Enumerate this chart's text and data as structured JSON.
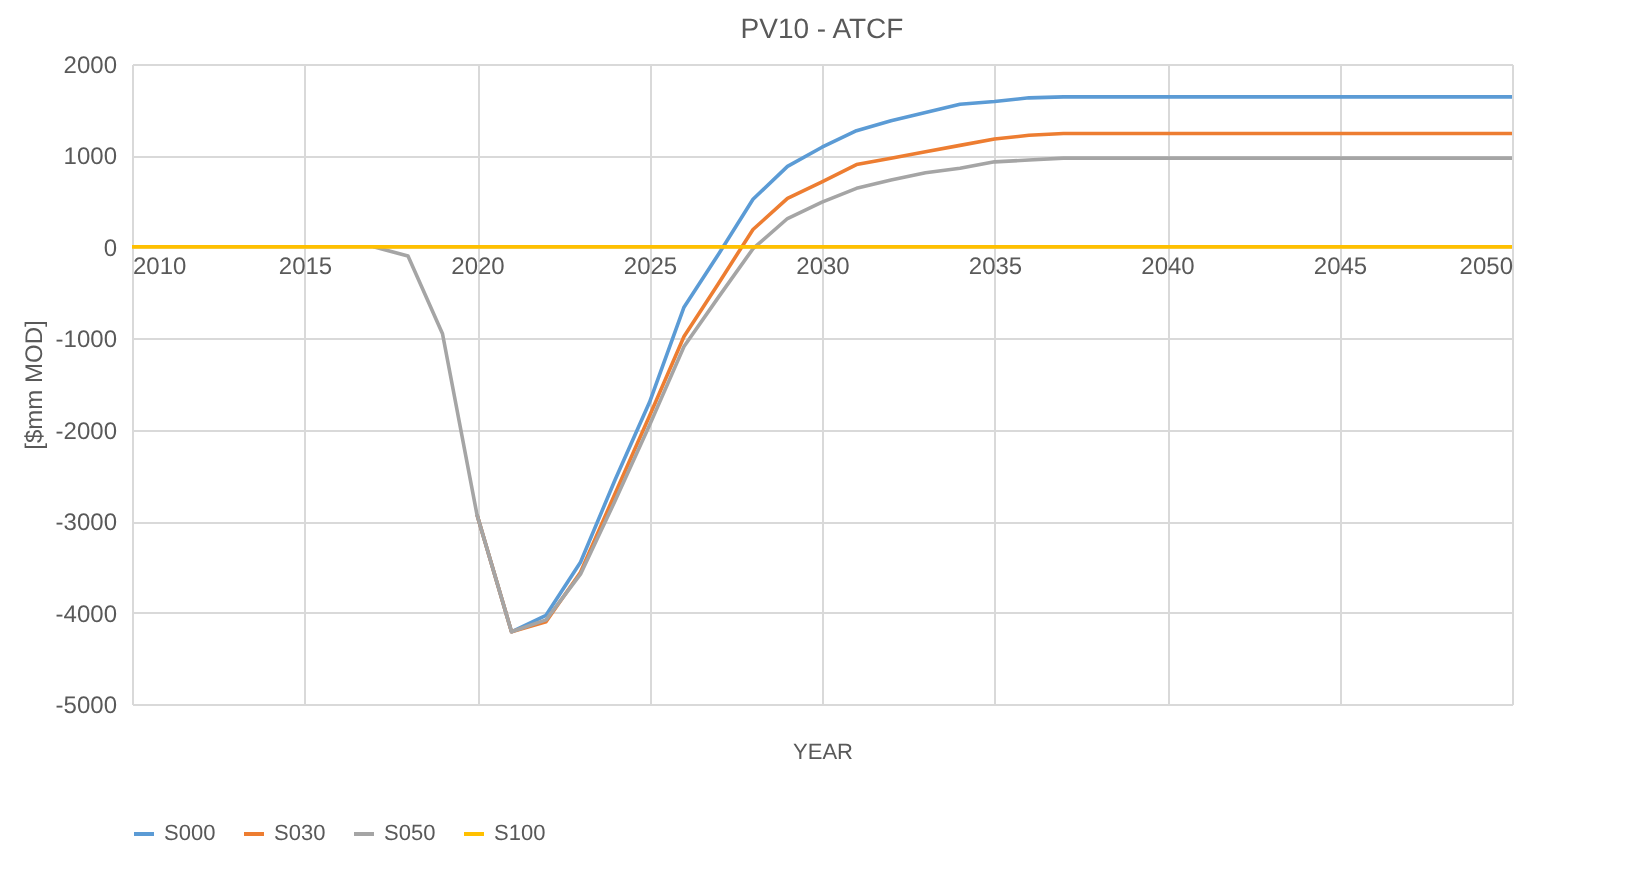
{
  "chart_data": {
    "type": "line",
    "title": "PV10 - ATCF",
    "xlabel": "YEAR",
    "ylabel": "[$mm MOD]",
    "x": [
      2010,
      2011,
      2012,
      2013,
      2014,
      2015,
      2016,
      2017,
      2018,
      2019,
      2020,
      2021,
      2022,
      2023,
      2024,
      2025,
      2026,
      2027,
      2028,
      2029,
      2030,
      2031,
      2032,
      2033,
      2034,
      2035,
      2036,
      2037,
      2038,
      2039,
      2040,
      2041,
      2042,
      2043,
      2044,
      2045,
      2046,
      2047,
      2048,
      2049,
      2050
    ],
    "series": [
      {
        "name": "S000",
        "color": "#5b9bd5",
        "values": [
          null,
          null,
          null,
          null,
          null,
          null,
          null,
          null,
          null,
          null,
          -2930,
          -4210,
          -4030,
          -3450,
          -2550,
          -1700,
          -660,
          -80,
          520,
          880,
          1090,
          1270,
          1380,
          1470,
          1560,
          1590,
          1630,
          1640,
          1640,
          1640,
          1640,
          1640,
          1640,
          1640,
          1640,
          1640,
          1640,
          1640,
          1640,
          1640,
          1640
        ]
      },
      {
        "name": "S030",
        "color": "#ed7d31",
        "values": [
          null,
          null,
          null,
          null,
          null,
          null,
          null,
          null,
          null,
          null,
          -2930,
          -4210,
          -4100,
          -3560,
          -2700,
          -1850,
          -980,
          -400,
          190,
          530,
          710,
          900,
          970,
          1040,
          1110,
          1180,
          1220,
          1240,
          1240,
          1240,
          1240,
          1240,
          1240,
          1240,
          1240,
          1240,
          1240,
          1240,
          1240,
          1240,
          1240
        ]
      },
      {
        "name": "S050",
        "color": "#a5a5a5",
        "values": [
          null,
          null,
          null,
          null,
          null,
          null,
          null,
          0,
          -100,
          -950,
          -2930,
          -4210,
          -4080,
          -3580,
          -2780,
          -1950,
          -1090,
          -550,
          -20,
          310,
          490,
          640,
          730,
          810,
          860,
          930,
          950,
          970,
          970,
          970,
          970,
          970,
          970,
          970,
          970,
          970,
          970,
          970,
          970,
          970,
          970
        ]
      },
      {
        "name": "S100",
        "color": "#ffc000",
        "values": [
          0,
          0,
          0,
          0,
          0,
          0,
          0,
          0,
          0,
          0,
          0,
          0,
          0,
          0,
          0,
          0,
          0,
          0,
          0,
          0,
          0,
          0,
          0,
          0,
          0,
          0,
          0,
          0,
          0,
          0,
          0,
          0,
          0,
          0,
          0,
          0,
          0,
          0,
          0,
          0,
          0
        ]
      }
    ],
    "xlim": [
      2010,
      2050
    ],
    "xticks": [
      2010,
      2015,
      2020,
      2025,
      2030,
      2035,
      2040,
      2045,
      2050
    ],
    "ylim": [
      -5000,
      2000
    ],
    "yticks": [
      -5000,
      -4000,
      -3000,
      -2000,
      -1000,
      0,
      1000,
      2000
    ],
    "grid": true,
    "legend": "bottom",
    "marker": "none",
    "line_style": "solid"
  }
}
